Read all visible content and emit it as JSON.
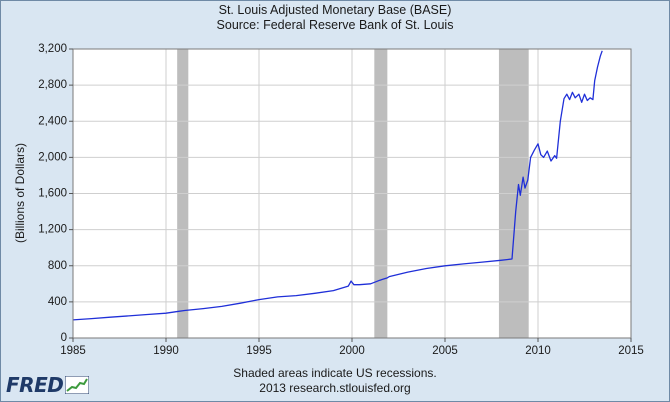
{
  "header": {
    "title": "St. Louis Adjusted Monetary Base (BASE)",
    "subtitle": "Source: Federal Reserve Bank of St. Louis"
  },
  "footer": {
    "note": "Shaded areas indicate US recessions.",
    "credit": "2013 research.stlouisfed.org",
    "logo_text": "FRED"
  },
  "colors": {
    "line": "#1f2fd8",
    "recession": "#bdbdbd",
    "plot_bg": "#ffffff",
    "grid": "#cfcfcf",
    "page_bg": "#d9e6f2"
  },
  "chart_data": {
    "type": "line",
    "title": "St. Louis Adjusted Monetary Base (BASE)",
    "subtitle": "Source: Federal Reserve Bank of St. Louis",
    "xlabel": "",
    "ylabel": "(Billions of Dollars)",
    "xlim": [
      1985,
      2015
    ],
    "ylim": [
      0,
      3200
    ],
    "x_ticks": [
      1985,
      1990,
      1995,
      2000,
      2005,
      2010,
      2015
    ],
    "y_ticks": [
      0,
      400,
      800,
      1200,
      1600,
      2000,
      2400,
      2800,
      3200
    ],
    "y_tick_labels": [
      "0",
      "400",
      "800",
      "1,200",
      "1,600",
      "2,000",
      "2,400",
      "2,800",
      "3,200"
    ],
    "grid": true,
    "recessions": [
      {
        "start": 1990.6,
        "end": 1991.2
      },
      {
        "start": 2001.2,
        "end": 2001.9
      },
      {
        "start": 2007.9,
        "end": 2009.5
      }
    ],
    "series": [
      {
        "name": "BASE",
        "x": [
          1985.0,
          1986.0,
          1987.0,
          1988.0,
          1989.0,
          1990.0,
          1990.5,
          1991.0,
          1992.0,
          1993.0,
          1994.0,
          1995.0,
          1996.0,
          1997.0,
          1998.0,
          1999.0,
          1999.8,
          1999.95,
          2000.1,
          2000.4,
          2001.0,
          2001.5,
          2001.9,
          2002.0,
          2003.0,
          2004.0,
          2005.0,
          2006.0,
          2007.0,
          2008.0,
          2008.6,
          2008.8,
          2008.95,
          2009.05,
          2009.2,
          2009.3,
          2009.45,
          2009.6,
          2009.8,
          2010.0,
          2010.15,
          2010.3,
          2010.5,
          2010.7,
          2010.9,
          2011.0,
          2011.2,
          2011.4,
          2011.55,
          2011.7,
          2011.85,
          2012.0,
          2012.2,
          2012.35,
          2012.5,
          2012.65,
          2012.8,
          2012.95,
          2013.05,
          2013.2,
          2013.35,
          2013.45
        ],
        "values": [
          200,
          215,
          230,
          245,
          260,
          275,
          290,
          305,
          325,
          350,
          385,
          425,
          455,
          470,
          495,
          525,
          575,
          630,
          590,
          590,
          600,
          640,
          665,
          680,
          730,
          770,
          800,
          820,
          840,
          860,
          875,
          1400,
          1700,
          1580,
          1780,
          1660,
          1750,
          2000,
          2080,
          2150,
          2030,
          2000,
          2070,
          1960,
          2020,
          1990,
          2400,
          2650,
          2700,
          2640,
          2720,
          2660,
          2700,
          2610,
          2700,
          2630,
          2660,
          2640,
          2850,
          3000,
          3120,
          3180
        ]
      }
    ]
  }
}
